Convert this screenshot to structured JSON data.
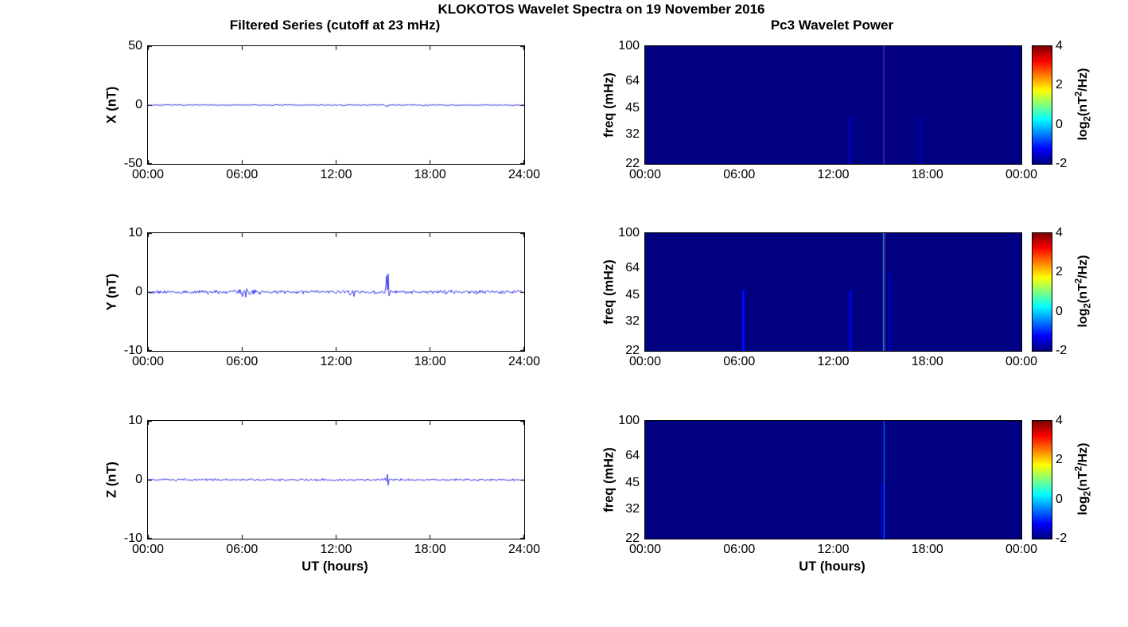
{
  "figure": {
    "title": "KLOKOTOS Wavelet Spectra on 19 November 2016",
    "trace_color": "#0000dd",
    "background": "#ffffff",
    "colorbar": {
      "colormap": "jet",
      "label_pre": "log",
      "label_sub": "2",
      "label_mid": "(nT",
      "label_sup": "2",
      "label_post": "/Hz)",
      "ticks": [
        4,
        2,
        0,
        -2
      ],
      "clim": [
        -2,
        4
      ]
    }
  },
  "chart_data": [
    {
      "type": "line",
      "title": "Filtered Series (cutoff at 23 mHz)",
      "ylabel": "X (nT)",
      "ylim": [
        -50,
        50
      ],
      "yticks": [
        50,
        0,
        -50
      ],
      "xticks": [
        "00:00",
        "06:00",
        "12:00",
        "18:00",
        "24:00"
      ],
      "x_range_hours": [
        0,
        24
      ],
      "noise_amp": 0.45,
      "bursts": [
        {
          "t": 15.3,
          "amp": 2.0,
          "sigma": 0.12
        },
        {
          "t": 17.6,
          "amp": 0.6,
          "sigma": 0.35
        }
      ]
    },
    {
      "type": "line",
      "ylabel": "Y (nT)",
      "ylim": [
        -10,
        10
      ],
      "yticks": [
        10,
        0,
        -10
      ],
      "xticks": [
        "00:00",
        "06:00",
        "12:00",
        "18:00",
        "24:00"
      ],
      "x_range_hours": [
        0,
        24
      ],
      "noise_amp": 0.3,
      "bursts": [
        {
          "t": 15.3,
          "amp": 2.8,
          "sigma": 0.1
        },
        {
          "t": 6.2,
          "amp": 0.5,
          "sigma": 0.4
        },
        {
          "t": 13.1,
          "amp": 0.4,
          "sigma": 0.25
        }
      ]
    },
    {
      "type": "line",
      "ylabel": "Z (nT)",
      "xlabel": "UT (hours)",
      "ylim": [
        -10,
        10
      ],
      "yticks": [
        10,
        0,
        -10
      ],
      "xticks": [
        "00:00",
        "06:00",
        "12:00",
        "18:00",
        "24:00"
      ],
      "x_range_hours": [
        0,
        24
      ],
      "noise_amp": 0.18,
      "bursts": [
        {
          "t": 15.3,
          "amp": 1.2,
          "sigma": 0.1
        }
      ]
    },
    {
      "type": "heatmap",
      "title": "Pc3 Wavelet Power",
      "ylabel": "freq (mHz)",
      "freq_range": [
        22,
        100
      ],
      "yticks": [
        100,
        64,
        45,
        32,
        22
      ],
      "xticks": [
        "00:00",
        "06:00",
        "12:00",
        "18:00",
        "00:00"
      ],
      "x_range_hours": [
        0,
        24
      ],
      "base_value": -2,
      "events": [
        {
          "t": 13.05,
          "amp": 0.5,
          "sigma": 0.05,
          "f_range": [
            22,
            40
          ]
        },
        {
          "t": 17.6,
          "amp": 0.4,
          "sigma": 0.05,
          "f_range": [
            22,
            40
          ]
        },
        {
          "t": 15.25,
          "amp": 6.0,
          "sigma": 0.025
        }
      ]
    },
    {
      "type": "heatmap",
      "ylabel": "freq (mHz)",
      "freq_range": [
        22,
        100
      ],
      "yticks": [
        100,
        64,
        45,
        32,
        22
      ],
      "xticks": [
        "00:00",
        "06:00",
        "12:00",
        "18:00",
        "00:00"
      ],
      "x_range_hours": [
        0,
        24
      ],
      "base_value": -2,
      "events": [
        {
          "t": 6.25,
          "amp": 0.9,
          "sigma": 0.06,
          "f_range": [
            22,
            48
          ]
        },
        {
          "t": 13.1,
          "amp": 0.8,
          "sigma": 0.05,
          "f_range": [
            22,
            48
          ]
        },
        {
          "t": 15.6,
          "amp": 0.5,
          "sigma": 0.05,
          "f_range": [
            22,
            60
          ]
        },
        {
          "t": 15.25,
          "amp": 6.0,
          "sigma": 0.03
        }
      ]
    },
    {
      "type": "heatmap",
      "ylabel": "freq (mHz)",
      "xlabel": "UT (hours)",
      "freq_range": [
        22,
        100
      ],
      "yticks": [
        100,
        64,
        45,
        32,
        22
      ],
      "xticks": [
        "00:00",
        "06:00",
        "12:00",
        "18:00",
        "00:00"
      ],
      "x_range_hours": [
        0,
        24
      ],
      "base_value": -2,
      "events": [
        {
          "t": 15.05,
          "amp": 0.4,
          "sigma": 0.05,
          "f_range": [
            22,
            45
          ]
        },
        {
          "t": 15.25,
          "amp": 1.5,
          "sigma": 0.025
        }
      ]
    }
  ]
}
